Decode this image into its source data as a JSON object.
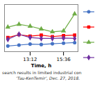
{
  "chart_data": {
    "type": "line",
    "x": [
      0,
      1,
      2,
      3,
      4,
      5,
      6
    ],
    "series": [
      {
        "color": "#4472C4",
        "marker": "circle",
        "values": [
          2.1,
          2.15,
          2.2,
          2.18,
          2.22,
          2.25,
          2.28
        ]
      },
      {
        "color": "#FF0000",
        "marker": "square",
        "values": [
          2.55,
          2.7,
          2.62,
          2.68,
          2.6,
          2.65,
          2.68
        ]
      },
      {
        "color": "#70AD47",
        "marker": "triangle",
        "values": [
          3.1,
          3.25,
          3.15,
          3.0,
          2.85,
          2.9,
          3.8
        ]
      },
      {
        "color": "#7030A0",
        "marker": "diamond",
        "values": [
          2.45,
          2.72,
          2.55,
          2.5,
          2.5,
          2.52,
          2.5
        ]
      }
    ],
    "xlabel": "Time, h",
    "xlim": [
      -0.3,
      6.3
    ],
    "xticks": [
      {
        "value": 2,
        "label": "13:12"
      },
      {
        "value": 5,
        "label": "15:36"
      }
    ],
    "ylim": [
      1.8,
      4.3
    ],
    "yticks": [],
    "tick_labels": "x",
    "legend": "right",
    "annotations": [
      "search results in limited industrial con",
      "‘Tau-KenTemir’, Dec. 27, 2018."
    ]
  }
}
